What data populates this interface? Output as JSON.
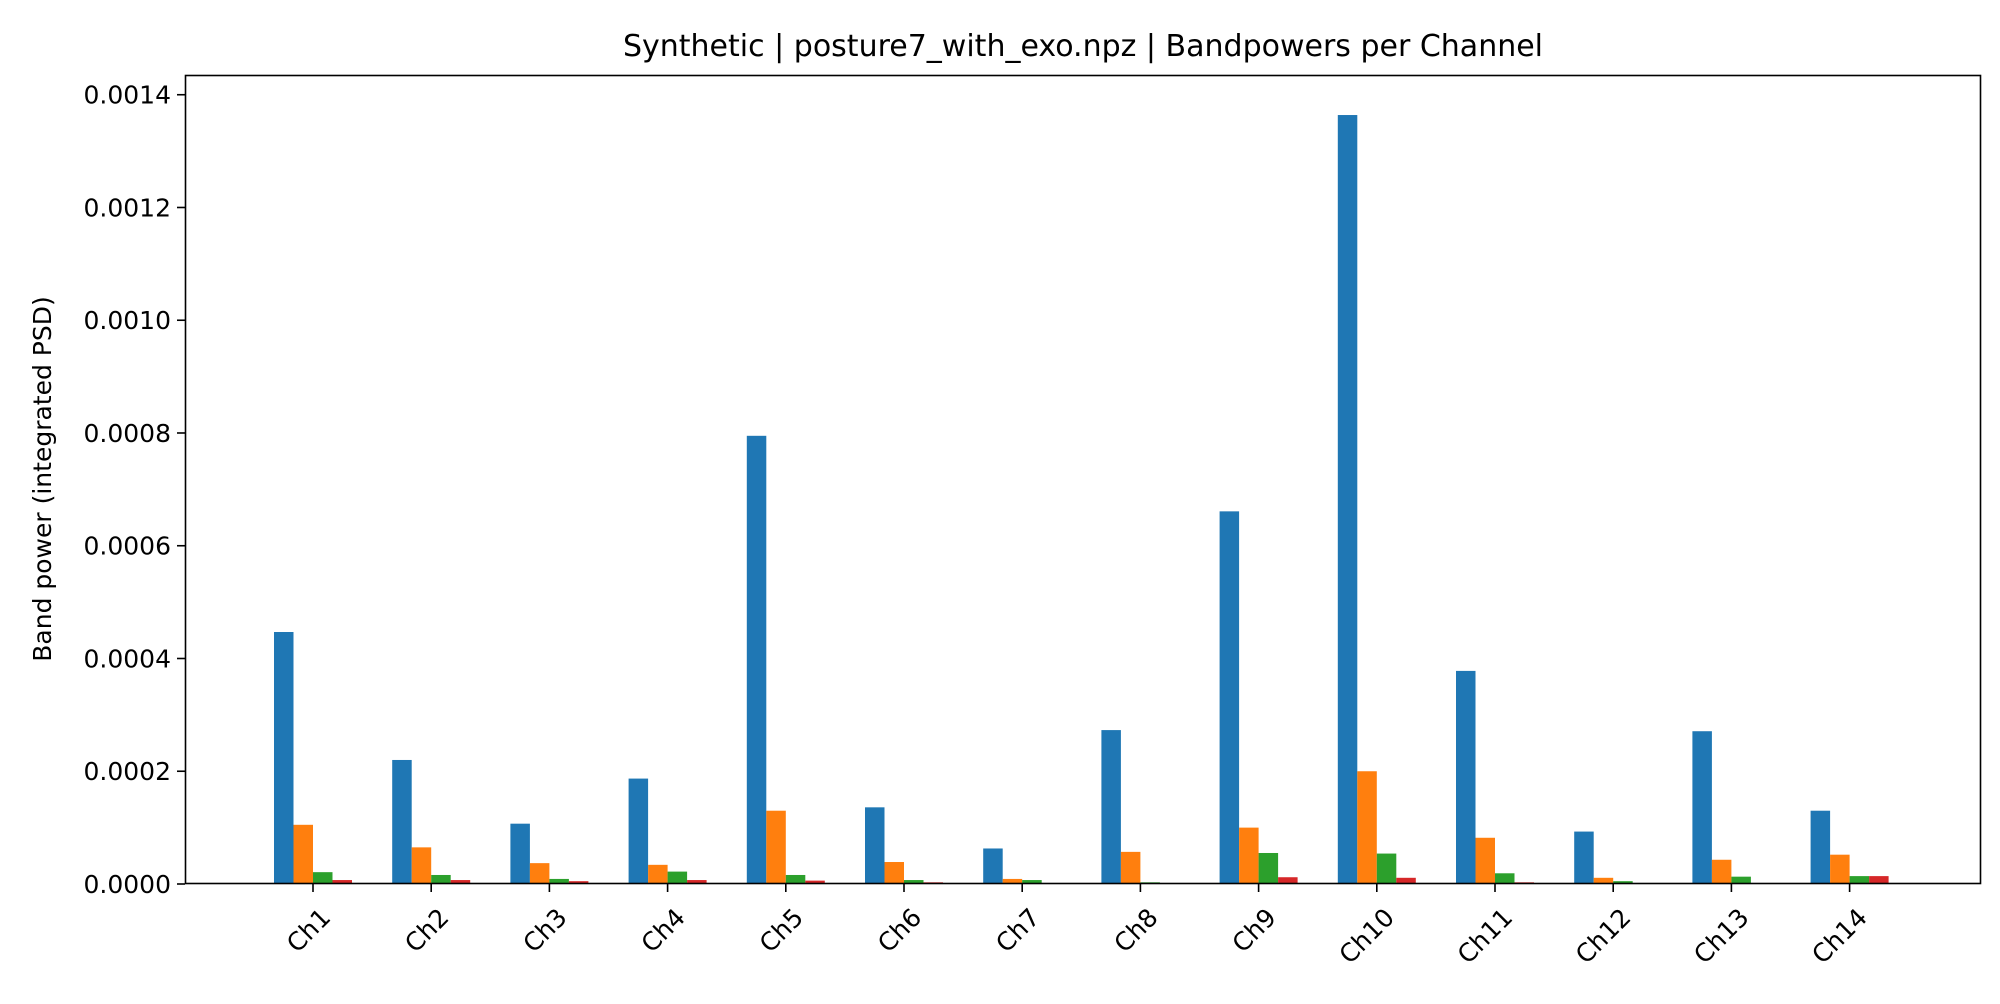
{
  "chart_data": {
    "type": "bar",
    "title": "Synthetic | posture7_with_exo.npz | Bandpowers per Channel",
    "xlabel": "",
    "ylabel": "Band power (integrated PSD)",
    "ylim": [
      0,
      0.001435
    ],
    "yticks": [
      "0.0000",
      "0.0002",
      "0.0004",
      "0.0006",
      "0.0008",
      "0.0010",
      "0.0012",
      "0.0014"
    ],
    "categories": [
      "Ch1",
      "Ch2",
      "Ch3",
      "Ch4",
      "Ch5",
      "Ch6",
      "Ch7",
      "Ch8",
      "Ch9",
      "Ch10",
      "Ch11",
      "Ch12",
      "Ch13",
      "Ch14"
    ],
    "series": [
      {
        "color": "#1f77b4",
        "values": [
          0.000447,
          0.00022,
          0.000107,
          0.000187,
          0.000795,
          0.000136,
          6.3e-05,
          0.000273,
          0.000661,
          0.001364,
          0.000378,
          9.3e-05,
          0.000271,
          0.00013
        ]
      },
      {
        "color": "#ff7f0e",
        "values": [
          0.000105,
          6.5e-05,
          3.7e-05,
          3.4e-05,
          0.00013,
          3.9e-05,
          9e-06,
          5.7e-05,
          0.0001,
          0.0002,
          8.2e-05,
          1.1e-05,
          4.3e-05,
          5.2e-05
        ]
      },
      {
        "color": "#2ca02c",
        "values": [
          2.1e-05,
          1.6e-05,
          9e-06,
          2.2e-05,
          1.6e-05,
          7e-06,
          7e-06,
          3e-06,
          5.5e-05,
          5.4e-05,
          1.9e-05,
          5e-06,
          1.3e-05,
          1.4e-05
        ]
      },
      {
        "color": "#d62728",
        "values": [
          7e-06,
          7e-06,
          5e-06,
          7e-06,
          6e-06,
          3e-06,
          1e-06,
          1e-06,
          1.2e-05,
          1.1e-05,
          3e-06,
          1e-06,
          1e-06,
          1.4e-05
        ]
      }
    ],
    "grid": false,
    "legend": "none"
  }
}
